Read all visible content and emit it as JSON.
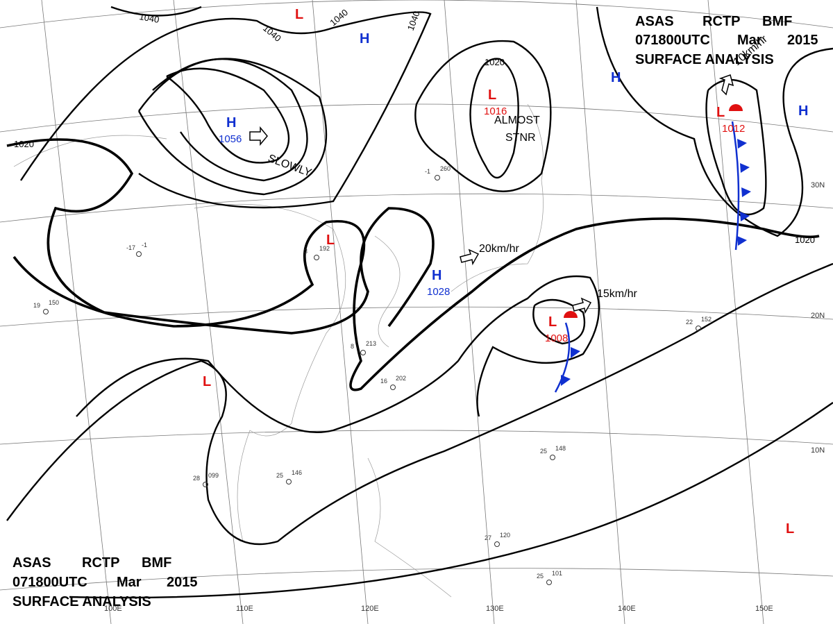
{
  "header": {
    "agency": "ASAS",
    "center": "RCTP",
    "code": "BMF",
    "time": "071800UTC",
    "month": "Mar",
    "year": "2015",
    "title": "SURFACE ANALYSIS"
  },
  "systems": [
    {
      "type": "H",
      "value": "1056"
    },
    {
      "type": "L",
      "value": "1016"
    },
    {
      "type": "H",
      "value": "1028"
    },
    {
      "type": "L",
      "value": "1008"
    },
    {
      "type": "L",
      "value": "1012"
    },
    {
      "type": "H"
    },
    {
      "type": "H"
    },
    {
      "type": "H"
    },
    {
      "type": "L"
    },
    {
      "type": "L"
    },
    {
      "type": "L"
    },
    {
      "type": "L"
    }
  ],
  "isobar_labels": [
    "1040",
    "1040",
    "1040",
    "1040",
    "1020",
    "1020",
    "1020"
  ],
  "motion_labels": [
    "SLOWLY",
    "ALMOST",
    "STNR",
    "20km/hr",
    "15km/hr",
    "10km/hr"
  ],
  "latitude_labels": [
    "30N",
    "20N",
    "10N"
  ],
  "longitude_labels": [
    "100E",
    "110E",
    "120E",
    "130E",
    "140E",
    "150E"
  ],
  "stations": [
    {
      "temp": "19",
      "pressure": "150"
    },
    {
      "temp": "-17",
      "pressure": "-1"
    },
    {
      "temp": "3",
      "pressure": "192"
    },
    {
      "temp": "8",
      "pressure": "213"
    },
    {
      "temp": "16",
      "pressure": "202"
    },
    {
      "temp": "28",
      "pressure": "099"
    },
    {
      "temp": "25",
      "pressure": "146"
    },
    {
      "temp": "22",
      "pressure": "152"
    },
    {
      "temp": "25",
      "pressure": "148"
    },
    {
      "temp": "27",
      "pressure": "120"
    },
    {
      "temp": "25",
      "pressure": "101"
    },
    {
      "temp": "-1",
      "pressure": "260"
    }
  ]
}
